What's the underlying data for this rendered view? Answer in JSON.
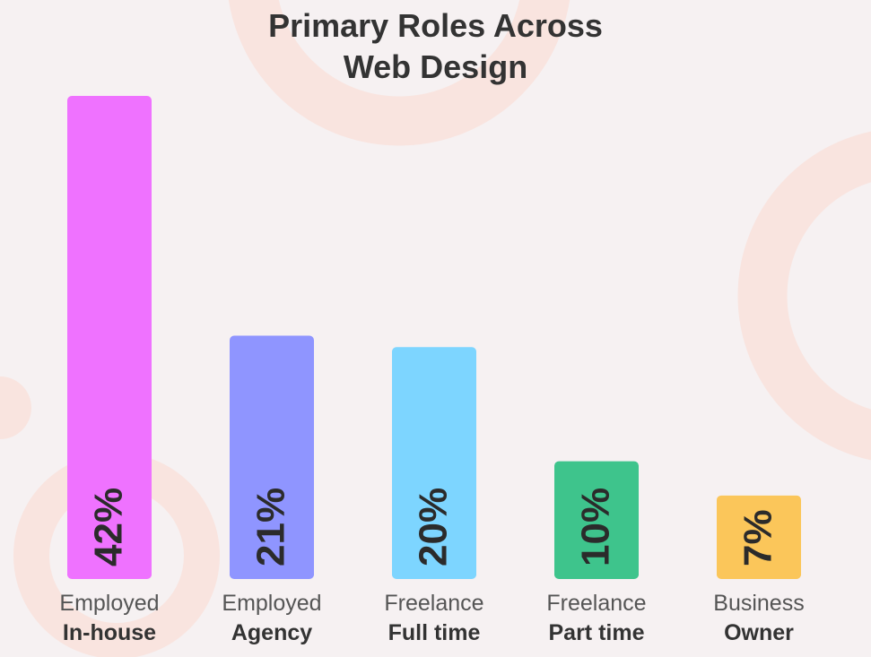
{
  "chart_data": {
    "type": "bar",
    "title": [
      "Primary Roles Across",
      "Web Design"
    ],
    "categories": [
      [
        "Employed",
        "In-house"
      ],
      [
        "Employed",
        "Agency"
      ],
      [
        "Freelance",
        "Full time"
      ],
      [
        "Freelance",
        "Part time"
      ],
      [
        "Business",
        "Owner"
      ]
    ],
    "values": [
      42,
      21,
      20,
      10,
      7
    ],
    "value_labels": [
      "42%",
      "21%",
      "20%",
      "10%",
      "7%"
    ],
    "colors": [
      "#ef72ff",
      "#8f95ff",
      "#7dd5ff",
      "#3ec48c",
      "#fbc65a"
    ],
    "ylim": [
      0,
      42
    ],
    "grid": false,
    "legend": "none"
  }
}
